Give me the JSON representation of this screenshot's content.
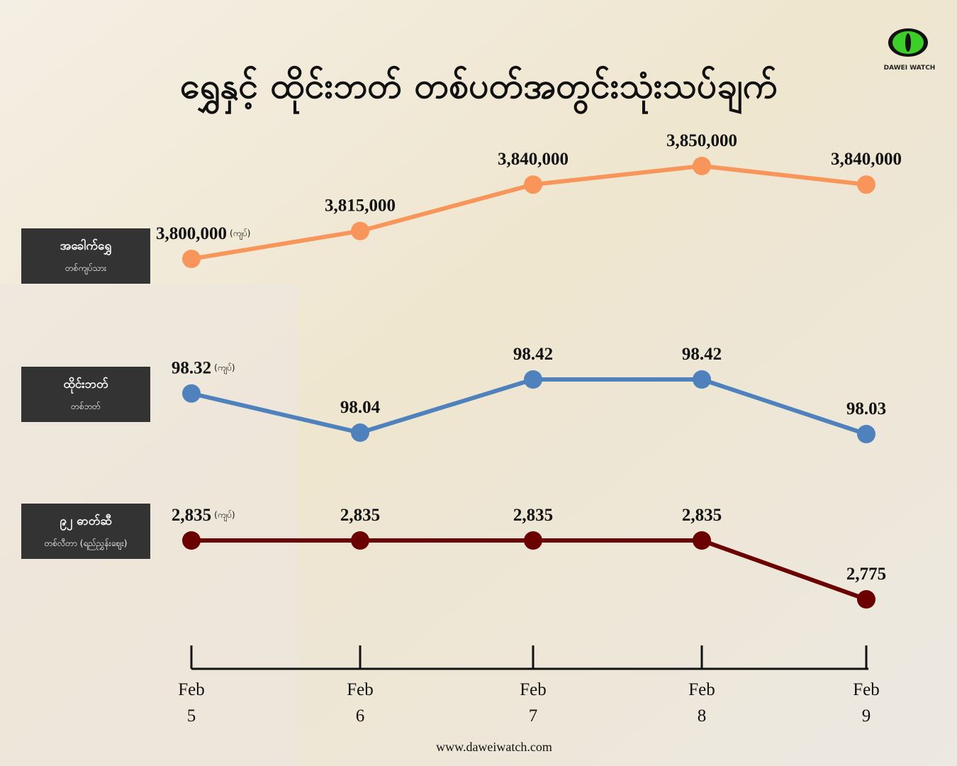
{
  "chart_data": {
    "type": "line",
    "title": "ရွှေနှင့် ထိုင်းဘတ် တစ်ပတ်အတွင်းသုံးသပ်ချက်",
    "categories": [
      "Feb 5",
      "Feb 6",
      "Feb 7",
      "Feb 8",
      "Feb 9"
    ],
    "series": [
      {
        "name": "အခေါက်ရွှေ",
        "subtitle": "တစ်ကျပ်သား",
        "unit": "(ကျပ်)",
        "color": "#f7955a",
        "values": [
          3800000,
          3815000,
          3840000,
          3850000,
          3840000
        ],
        "value_labels": [
          "3,800,000",
          "3,815,000",
          "3,840,000",
          "3,850,000",
          "3,840,000"
        ]
      },
      {
        "name": "ထိုင်းဘတ်",
        "subtitle": "တစ်ဘတ်",
        "unit": "(ကျပ်)",
        "color": "#4f81bd",
        "values": [
          98.32,
          98.04,
          98.42,
          98.42,
          98.03
        ]
      },
      {
        "name": "၉၂ ဓာတ်ဆီ",
        "subtitle": "တစ်လီတာ (ရည်ညွှန်းဈေး)",
        "unit": "(ကျပ်)",
        "color": "#6b0000",
        "values": [
          2835,
          2835,
          2835,
          2835,
          2775
        ],
        "value_labels": [
          "2,835",
          "2,835",
          "2,835",
          "2,835",
          "2,775"
        ]
      }
    ]
  },
  "logo": "DAWEI WATCH",
  "footer": "www.daweiwatch.com"
}
